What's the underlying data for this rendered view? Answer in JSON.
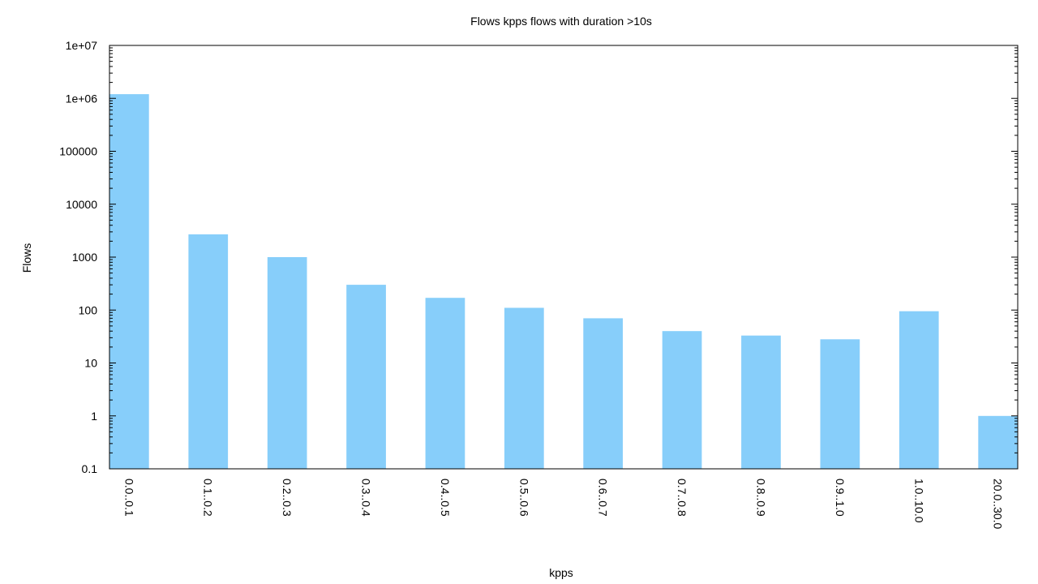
{
  "chart_data": {
    "type": "bar",
    "title": "Flows kpps flows with duration >10s",
    "xlabel": "kpps",
    "ylabel": "Flows",
    "yscale": "log",
    "ylim": [
      0.1,
      10000000
    ],
    "ytick_labels": [
      "0.1",
      "1",
      "10",
      "100",
      "1000",
      "10000",
      "100000",
      "1e+06",
      "1e+07"
    ],
    "categories": [
      "0.0..0.1",
      "0.1..0.2",
      "0.2..0.3",
      "0.3..0.4",
      "0.4..0.5",
      "0.5..0.6",
      "0.6..0.7",
      "0.7..0.8",
      "0.8..0.9",
      "0.9..1.0",
      "1.0..10.0",
      "20.0..30.0"
    ],
    "values": [
      1200000,
      2700,
      1000,
      300,
      170,
      110,
      70,
      40,
      33,
      28,
      95,
      1
    ],
    "bar_color": "#87cefa",
    "grid": false,
    "legend": "none"
  }
}
